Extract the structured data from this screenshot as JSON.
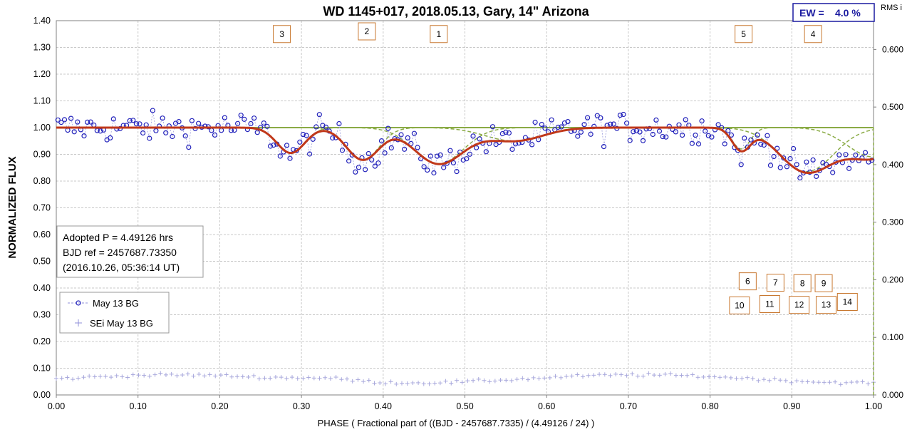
{
  "chart_data": {
    "type": "scatter",
    "title": "WD 1145+017, 2018.05.13, Gary,  14\" Arizona",
    "xlabel": "PHASE  ( Fractional part of ((BJD - 2457687.7335)  / (4.49126  / 24) )",
    "ylabel": "NORMALIZED  FLUX",
    "y2label": "RMS i",
    "xlim": [
      0,
      1
    ],
    "ylim": [
      0,
      1.4
    ],
    "y2lim": [
      0,
      0.65
    ],
    "x_ticks": [
      "0.00",
      "0.10",
      "0.20",
      "0.30",
      "0.40",
      "0.50",
      "0.60",
      "0.70",
      "0.80",
      "0.90",
      "1.00"
    ],
    "y_ticks": [
      "0.00",
      "0.10",
      "0.20",
      "0.30",
      "0.40",
      "0.50",
      "0.60",
      "0.70",
      "0.80",
      "0.90",
      "1.00",
      "1.10",
      "1.20",
      "1.30",
      "1.40"
    ],
    "y2_ticks": [
      "0.000",
      "0.100",
      "0.200",
      "0.300",
      "0.400",
      "0.500",
      "0.600"
    ],
    "grid": true,
    "legend_position": "bottom-left",
    "ew_box": {
      "label": "EW =",
      "value": "4.0 %"
    },
    "info_box": {
      "line1": "Adopted P = 4.49126 hrs",
      "line2": "BJD ref = 2457687.73350",
      "line3": "(2016.10.26, 05:36:14 UT)"
    },
    "legend": [
      {
        "name": "May 13 BG",
        "marker": "circle",
        "color": "#2222bb"
      },
      {
        "name": "SEi May 13 BG",
        "marker": "plus",
        "color": "#8f8fd8"
      }
    ],
    "dip_labels": [
      {
        "label": "3",
        "x": 0.276,
        "y": 1.35
      },
      {
        "label": "2",
        "x": 0.38,
        "y": 1.36
      },
      {
        "label": "1",
        "x": 0.468,
        "y": 1.35
      },
      {
        "label": "5",
        "x": 0.841,
        "y": 1.35
      },
      {
        "label": "4",
        "x": 0.926,
        "y": 1.35
      },
      {
        "label": "6",
        "x": 0.846,
        "y": 0.425
      },
      {
        "label": "7",
        "x": 0.88,
        "y": 0.42
      },
      {
        "label": "8",
        "x": 0.913,
        "y": 0.418
      },
      {
        "label": "9",
        "x": 0.939,
        "y": 0.418
      },
      {
        "label": "10",
        "x": 0.836,
        "y": 0.335
      },
      {
        "label": "11",
        "x": 0.873,
        "y": 0.34
      },
      {
        "label": "12",
        "x": 0.909,
        "y": 0.337
      },
      {
        "label": "13",
        "x": 0.942,
        "y": 0.337
      },
      {
        "label": "14",
        "x": 0.968,
        "y": 0.348
      }
    ],
    "dips": [
      {
        "center": 0.287,
        "depth": 0.095,
        "width": 0.017
      },
      {
        "center": 0.375,
        "depth": 0.12,
        "width": 0.02
      },
      {
        "center": 0.468,
        "depth": 0.135,
        "width": 0.03
      },
      {
        "center": 0.838,
        "depth": 0.08,
        "width": 0.011
      },
      {
        "center": 0.918,
        "depth": 0.165,
        "width": 0.033
      },
      {
        "center": 1.0,
        "depth": 0.11,
        "width": 0.032
      },
      {
        "center": 0.56,
        "depth": 0.05,
        "width": 0.035
      }
    ],
    "fit_color": "#c0381a",
    "components_color": "#8aab45",
    "baseline": 1.0,
    "rms_color": "#a8a8dc",
    "rms_points": {
      "x_start": 0.0,
      "x_end": 1.0,
      "count": 150,
      "base": 0.06,
      "noise": 0.01
    }
  }
}
